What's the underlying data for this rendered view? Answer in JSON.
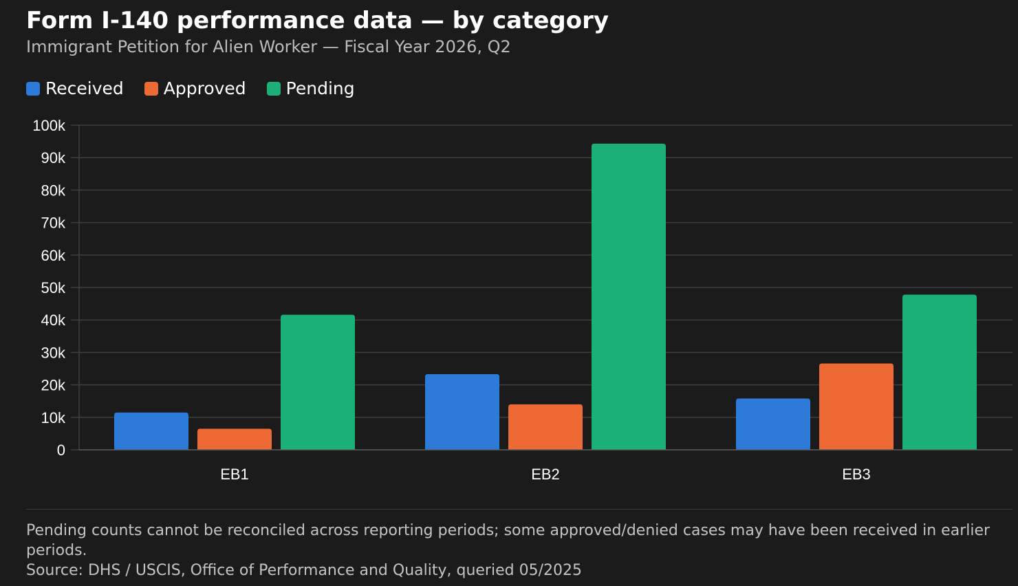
{
  "header": {
    "title": "Form I-140 performance data — by category",
    "subtitle": "Immigrant Petition for Alien Worker — Fiscal Year 2026, Q2"
  },
  "legend": [
    {
      "label": "Received",
      "color": "#2d7ad8"
    },
    {
      "label": "Approved",
      "color": "#ed6a35"
    },
    {
      "label": "Pending",
      "color": "#1bb077"
    }
  ],
  "chart_data": {
    "type": "bar",
    "categories": [
      "EB1",
      "EB2",
      "EB3"
    ],
    "series": [
      {
        "name": "Received",
        "values": [
          11500,
          23300,
          15800
        ],
        "color": "#2d7ad8"
      },
      {
        "name": "Approved",
        "values": [
          6500,
          14000,
          26600
        ],
        "color": "#ed6a35"
      },
      {
        "name": "Pending",
        "values": [
          41600,
          94300,
          47800
        ],
        "color": "#1bb077"
      }
    ],
    "ylim": [
      0,
      100000
    ],
    "yticks": [
      0,
      10000,
      20000,
      30000,
      40000,
      50000,
      60000,
      70000,
      80000,
      90000,
      100000
    ],
    "ytick_labels": [
      "0",
      "10k",
      "20k",
      "30k",
      "40k",
      "50k",
      "60k",
      "70k",
      "80k",
      "90k",
      "100k"
    ],
    "xlabel": "",
    "ylabel": "",
    "grid": true,
    "legend_position": "top-left"
  },
  "footer": {
    "note": "Pending counts cannot be reconciled across reporting periods; some approved/denied cases may have been received in earlier periods.",
    "source": "Source: DHS / USCIS, Office of Performance and Quality, queried 05/2025"
  }
}
